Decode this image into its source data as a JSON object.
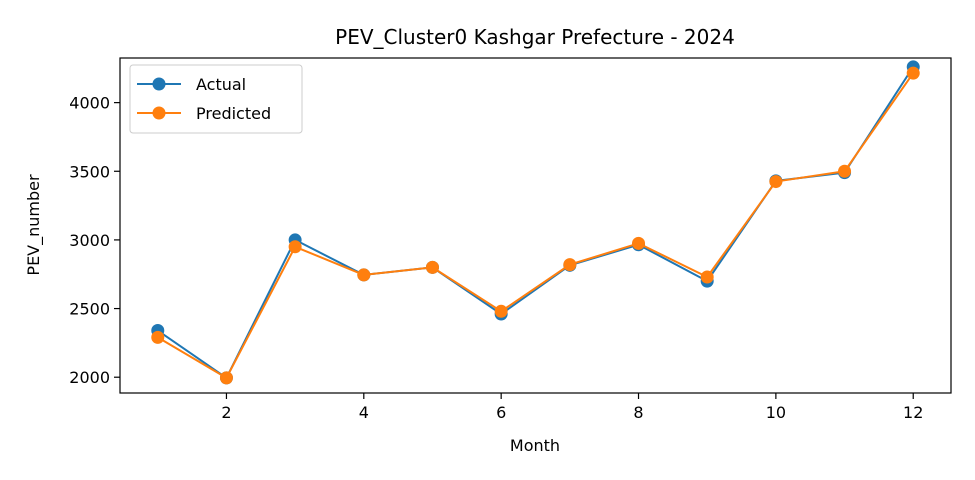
{
  "chart_data": {
    "type": "line",
    "title": "PEV_Cluster0 Kashgar Prefecture - 2024",
    "xlabel": "Month",
    "ylabel": "PEV_number",
    "x": [
      1,
      2,
      3,
      4,
      5,
      6,
      7,
      8,
      9,
      10,
      11,
      12
    ],
    "xlim": [
      0.45,
      12.55
    ],
    "ylim": [
      1885,
      4325
    ],
    "xticks": [
      2,
      4,
      6,
      8,
      10,
      12
    ],
    "yticks": [
      2000,
      2500,
      3000,
      3500,
      4000
    ],
    "grid": false,
    "legend_position": "top-left",
    "series": [
      {
        "name": "Actual",
        "color": "#1f77b4",
        "marker": "circle",
        "values": [
          2340,
          1995,
          3000,
          2745,
          2800,
          2460,
          2815,
          2965,
          2700,
          3430,
          3490,
          4260
        ]
      },
      {
        "name": "Predicted",
        "color": "#ff7f0e",
        "marker": "circle",
        "values": [
          2290,
          1995,
          2950,
          2745,
          2800,
          2480,
          2820,
          2975,
          2730,
          3425,
          3500,
          4215
        ]
      }
    ]
  }
}
